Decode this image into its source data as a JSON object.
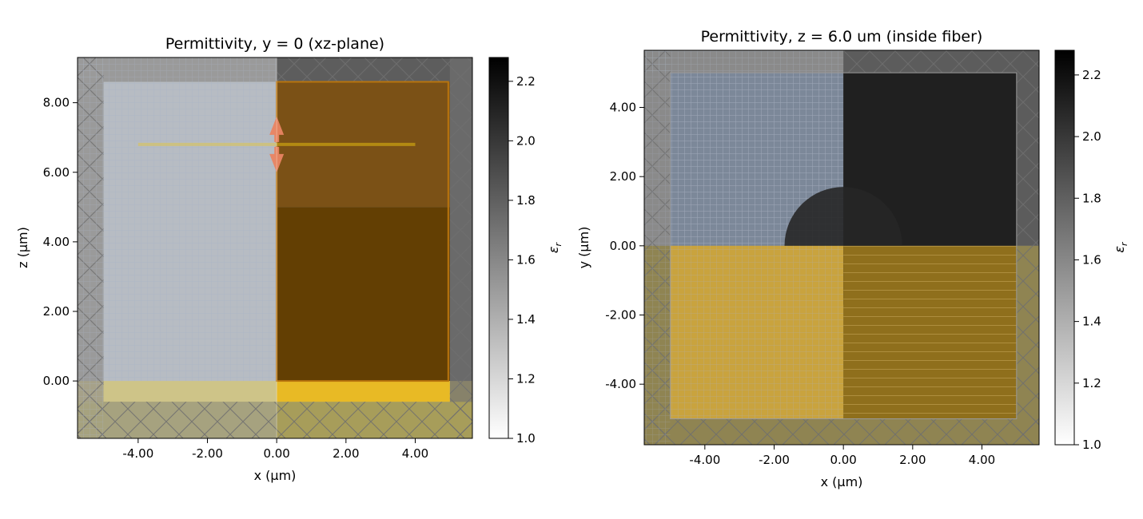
{
  "chart_data": [
    {
      "type": "heatmap",
      "title": "Permittivity, y = 0 (xz-plane)",
      "xlabel": "x (μm)",
      "ylabel": "z (μm)",
      "xlim": [
        -5.75,
        5.65
      ],
      "ylim": [
        -1.65,
        9.3
      ],
      "xticks": [
        -4,
        -2,
        0,
        2,
        4
      ],
      "xtick_labels": [
        "-4.00",
        "-2.00",
        "0.00",
        "2.00",
        "4.00"
      ],
      "yticks": [
        0,
        2,
        4,
        6,
        8
      ],
      "ytick_labels": [
        "0.00",
        "2.00",
        "4.00",
        "6.00",
        "8.00"
      ],
      "colorbar": {
        "label": "ε_r",
        "range": [
          1.0,
          2.28
        ],
        "ticks": [
          1.0,
          1.2,
          1.4,
          1.6,
          1.8,
          2.0,
          2.2
        ],
        "tick_labels": [
          "1.0",
          "1.2",
          "1.4",
          "1.6",
          "1.8",
          "2.0",
          "2.2"
        ]
      },
      "regions": {
        "simulation_box": {
          "x": [
            -5,
            5
          ],
          "z": [
            -0.6,
            8.6
          ]
        },
        "pml_top_boundary": 8.6,
        "pml_bottom_boundary": -0.6,
        "substrate_top": 0.0,
        "fiber_core_bottom": 5.0,
        "symmetry_plane_x": 0.0,
        "source_line": {
          "x": [
            -4,
            4
          ],
          "z": 6.8
        },
        "source_arrow": {
          "x": 0,
          "z": 6.8
        }
      }
    },
    {
      "type": "heatmap",
      "title": "Permittivity, z = 6.0 um (inside fiber)",
      "xlabel": "x (μm)",
      "ylabel": "y (μm)",
      "xlim": [
        -5.75,
        5.65
      ],
      "ylim": [
        -5.75,
        5.65
      ],
      "xticks": [
        -4,
        -2,
        0,
        2,
        4
      ],
      "xtick_labels": [
        "-4.00",
        "-2.00",
        "0.00",
        "2.00",
        "4.00"
      ],
      "yticks": [
        -4,
        -2,
        0,
        2,
        4
      ],
      "ytick_labels": [
        "-4.00",
        "-2.00",
        "0.00",
        "2.00",
        "4.00"
      ],
      "colorbar": {
        "label": "ε_r",
        "range": [
          1.0,
          2.28
        ],
        "ticks": [
          1.0,
          1.2,
          1.4,
          1.6,
          1.8,
          2.0,
          2.2
        ],
        "tick_labels": [
          "1.0",
          "1.2",
          "1.4",
          "1.6",
          "1.8",
          "2.0",
          "2.2"
        ]
      },
      "regions": {
        "simulation_box": {
          "x": [
            -5,
            5
          ],
          "y": [
            -5,
            5
          ]
        },
        "symmetry_plane_x": 0.0,
        "symmetry_plane_y": 0.0
      }
    }
  ]
}
